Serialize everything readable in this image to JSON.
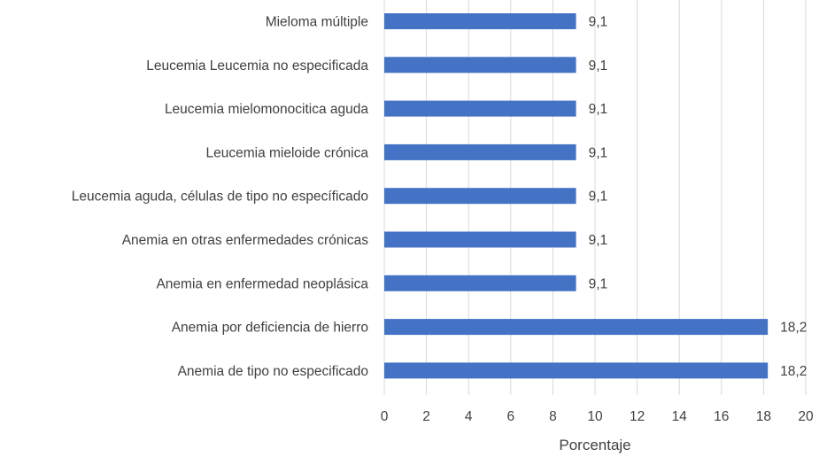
{
  "chart_data": {
    "type": "bar",
    "orientation": "horizontal",
    "categories": [
      "Mieloma múltiple",
      "Leucemia Leucemia no especificada",
      "Leucemia mielomonocitica aguda",
      "Leucemia mieloide crónica",
      "Leucemia aguda, células de tipo  no específicado",
      "Anemia en otras enfermedades crónicas",
      "Anemia en enfermedad neoplásica",
      "Anemia por deficiencia de hierro",
      "Anemia de tipo no especificado"
    ],
    "values": [
      9.1,
      9.1,
      9.1,
      9.1,
      9.1,
      9.1,
      9.1,
      18.2,
      18.2
    ],
    "data_labels": [
      "9,1",
      "9,1",
      "9,1",
      "9,1",
      "9,1",
      "9,1",
      "9,1",
      "18,2",
      "18,2"
    ],
    "xticks": [
      "0",
      "2",
      "4",
      "6",
      "8",
      "10",
      "12",
      "14",
      "16",
      "18",
      "20"
    ],
    "xlim": [
      0,
      20
    ],
    "xlabel": "Porcentaje",
    "ylabel": "",
    "grid": "vertical",
    "bar_color": "#4472c4"
  }
}
